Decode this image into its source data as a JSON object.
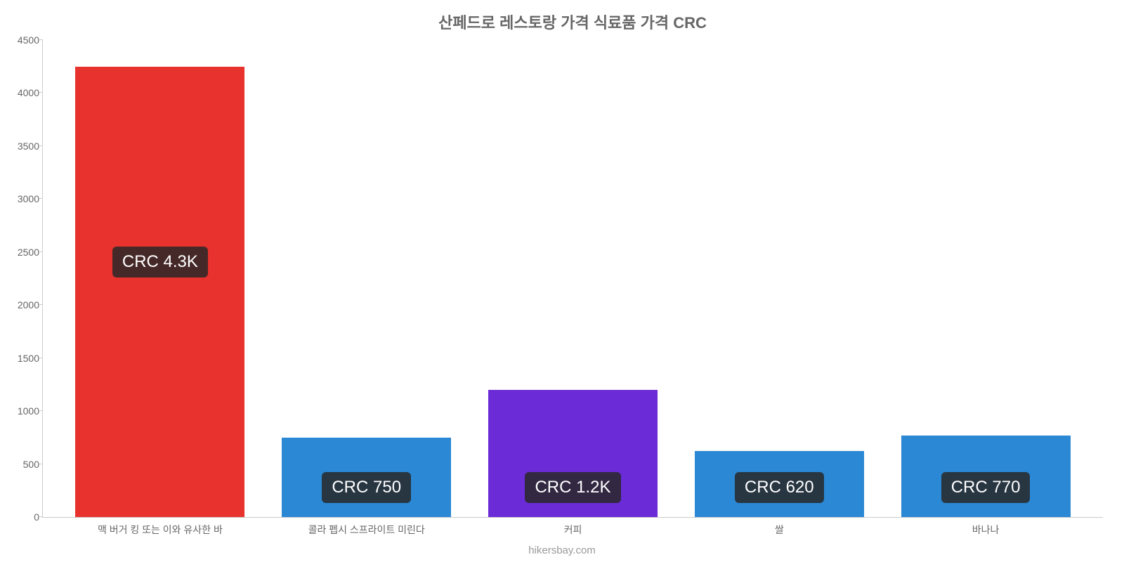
{
  "chart": {
    "type": "bar",
    "title": "산페드로 레스토랑 가격 식료품 가격 CRC",
    "title_fontsize": 22,
    "title_color": "#666666",
    "background_color": "#ffffff",
    "axis_color": "#cccccc",
    "label_color": "#666666",
    "label_fontsize": 14,
    "ylim": [
      0,
      4500
    ],
    "ytick_step": 500,
    "yticks": [
      0,
      500,
      1000,
      1500,
      2000,
      2500,
      3000,
      3500,
      4000,
      4500
    ],
    "categories": [
      "맥 버거 킹 또는 이와 유사한 바",
      "콜라 펩시 스프라이트 미린다",
      "커피",
      "쌀",
      "바나나"
    ],
    "values": [
      4250,
      750,
      1200,
      620,
      770
    ],
    "bar_colors": [
      "#e8322d",
      "#2a88d4",
      "#6b2bd6",
      "#2a88d4",
      "#2a88d4"
    ],
    "bar_width_pct": 82,
    "value_labels": [
      "CRC 4.3K",
      "CRC 750",
      "CRC 1.2K",
      "CRC 620",
      "CRC 770"
    ],
    "value_label_bg": "rgba(40,40,40,0.85)",
    "value_label_color": "#ffffff",
    "value_label_fontsize": 24,
    "source": "hikersbay.com",
    "source_color": "#999999"
  }
}
